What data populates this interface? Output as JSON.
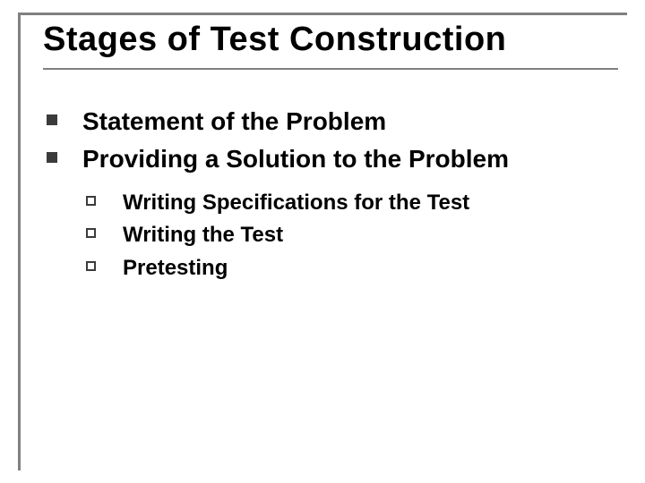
{
  "slide": {
    "title": "Stages of Test Construction",
    "title_fontsize": 38,
    "title_color": "#000000",
    "frame_color": "#808080",
    "background_color": "#ffffff",
    "level1": [
      {
        "text": "Statement of the Problem"
      },
      {
        "text": "Providing a Solution to the Problem"
      }
    ],
    "level1_bullet": {
      "type": "filled-square",
      "color": "#3b3b3b",
      "size": 12
    },
    "level1_fontsize": 28,
    "level1_fontweight": 700,
    "level2": [
      {
        "text": "Writing Specifications for the Test"
      },
      {
        "text": "Writing the Test"
      },
      {
        "text": "Pretesting"
      }
    ],
    "level2_bullet": {
      "type": "hollow-square",
      "color": "#3b3b3b",
      "size": 11
    },
    "level2_fontsize": 24,
    "level2_fontweight": 700
  }
}
